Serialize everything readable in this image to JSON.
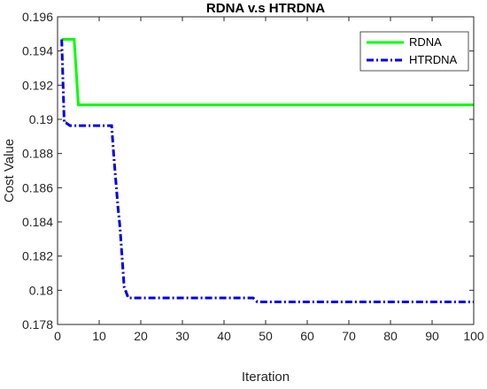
{
  "chart_data": {
    "type": "line",
    "title": "RDNA v.s HTRDNA",
    "xlabel": "Iteration",
    "ylabel": "Cost Value",
    "xlim": [
      0,
      100
    ],
    "ylim": [
      0.178,
      0.196
    ],
    "xticks": [
      0,
      10,
      20,
      30,
      40,
      50,
      60,
      70,
      80,
      90,
      100
    ],
    "yticks": [
      0.178,
      0.18,
      0.182,
      0.184,
      0.186,
      0.188,
      0.19,
      0.192,
      0.194,
      0.196
    ],
    "ytick_labels": [
      "0.178",
      "0.18",
      "0.182",
      "0.184",
      "0.186",
      "0.188",
      "0.19",
      "0.192",
      "0.194",
      "0.196"
    ],
    "grid": false,
    "legend_position": "top-right",
    "series": [
      {
        "name": "RDNA",
        "color": "#00ff00",
        "style": "solid",
        "x": [
          1,
          4,
          5,
          100
        ],
        "y": [
          0.19468,
          0.19468,
          0.19085,
          0.19085
        ]
      },
      {
        "name": "HTRDNA",
        "color": "#0000e6",
        "style": "dashdot",
        "x": [
          1,
          1.6,
          2,
          3,
          13,
          13.5,
          14.5,
          15,
          16,
          17,
          47,
          48,
          100
        ],
        "y": [
          0.19468,
          0.1898,
          0.1898,
          0.18963,
          0.18963,
          0.1879,
          0.1849,
          0.1837,
          0.1802,
          0.17955,
          0.17955,
          0.17932,
          0.17932
        ]
      }
    ]
  }
}
